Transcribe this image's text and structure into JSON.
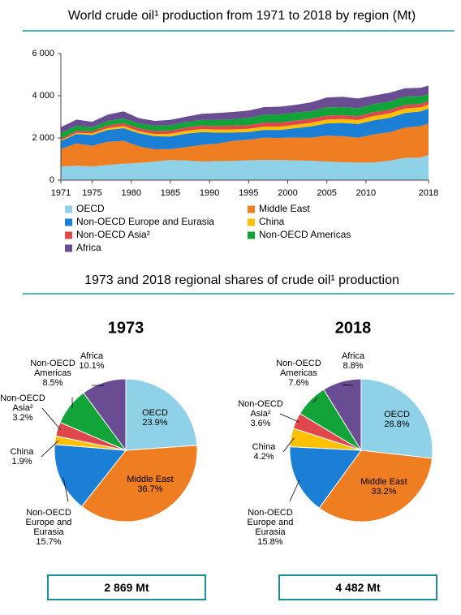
{
  "heading": "1973 and 2018 regional shares of crude oil¹ production",
  "chart_data": [
    {
      "type": "area",
      "stacked": true,
      "title": "World crude oil¹ production from 1971 to 2018 by region (Mt)",
      "x": [
        1971,
        1973,
        1975,
        1977,
        1979,
        1981,
        1983,
        1985,
        1987,
        1989,
        1991,
        1993,
        1995,
        1997,
        1999,
        2001,
        2003,
        2005,
        2007,
        2009,
        2011,
        2013,
        2015,
        2017,
        2018
      ],
      "xlim": [
        1971,
        2018
      ],
      "xticks": [
        1971,
        1975,
        1980,
        1985,
        1990,
        1995,
        2000,
        2005,
        2010,
        2018
      ],
      "ylim": [
        0,
        6000
      ],
      "yticks": [
        0,
        {
          "value": 2000,
          "label": "2 000"
        },
        {
          "value": 4000,
          "label": "4 000"
        },
        {
          "value": 6000,
          "label": "6 000"
        }
      ],
      "legend": "bottom",
      "series": [
        {
          "name": "OECD",
          "color": "#8fd1e6",
          "values": [
            650,
            686,
            650,
            720,
            780,
            820,
            880,
            950,
            930,
            880,
            900,
            910,
            940,
            960,
            950,
            940,
            920,
            880,
            850,
            830,
            840,
            920,
            1060,
            1060,
            1201
          ]
        },
        {
          "name": "Middle East",
          "color": "#ef7d22",
          "values": [
            820,
            1053,
            980,
            1100,
            1080,
            780,
            580,
            520,
            640,
            790,
            830,
            950,
            980,
            1050,
            1050,
            1080,
            1100,
            1230,
            1230,
            1180,
            1330,
            1350,
            1430,
            1500,
            1488
          ]
        },
        {
          "name": "Non-OECD Europe and Eurasia",
          "color": "#1c7fd6",
          "values": [
            380,
            450,
            510,
            560,
            600,
            620,
            620,
            600,
            630,
            610,
            520,
            400,
            360,
            370,
            380,
            440,
            530,
            580,
            630,
            650,
            670,
            680,
            690,
            700,
            708
          ]
        },
        {
          "name": "China",
          "color": "#ffc000",
          "values": [
            40,
            55,
            77,
            94,
            106,
            101,
            106,
            125,
            134,
            138,
            141,
            145,
            149,
            160,
            160,
            165,
            170,
            181,
            187,
            189,
            203,
            210,
            215,
            192,
            188
          ]
        },
        {
          "name": "Non-OECD Asia²",
          "color": "#e0474c",
          "values": [
            60,
            92,
            100,
            120,
            130,
            130,
            140,
            150,
            160,
            165,
            170,
            175,
            180,
            190,
            190,
            195,
            190,
            190,
            185,
            180,
            175,
            170,
            170,
            165,
            161
          ]
        },
        {
          "name": "Non-OECD Americas",
          "color": "#12a339",
          "values": [
            270,
            244,
            200,
            210,
            230,
            240,
            250,
            260,
            260,
            270,
            290,
            310,
            340,
            370,
            390,
            380,
            360,
            390,
            380,
            380,
            390,
            390,
            400,
            360,
            341
          ]
        },
        {
          "name": "Africa",
          "color": "#6a4c93",
          "values": [
            290,
            290,
            250,
            300,
            330,
            240,
            230,
            250,
            250,
            290,
            330,
            340,
            350,
            360,
            360,
            370,
            420,
            470,
            490,
            460,
            400,
            420,
            390,
            400,
            394
          ]
        }
      ]
    },
    {
      "type": "pie",
      "title": "1973",
      "categories": [
        "OECD",
        "Middle East",
        "Non-OECD Europe and Eurasia",
        "China",
        "Non-OECD Asia²",
        "Non-OECD Americas",
        "Africa"
      ],
      "values": [
        23.9,
        36.7,
        15.7,
        1.9,
        3.2,
        8.5,
        10.1
      ],
      "value_labels": [
        "23.9%",
        "36.7%",
        "15.7%",
        "1.9%",
        "3.2%",
        "8.5%",
        "10.1%"
      ],
      "colors": [
        "#8fd1e6",
        "#ef7d22",
        "#1c7fd6",
        "#ffc000",
        "#e0474c",
        "#12a339",
        "#6a4c93"
      ],
      "total_label": "2 869 Mt"
    },
    {
      "type": "pie",
      "title": "2018",
      "categories": [
        "OECD",
        "Middle East",
        "Non-OECD Europe and Eurasia",
        "China",
        "Non-OECD Asia²",
        "Non-OECD Americas",
        "Africa"
      ],
      "values": [
        26.8,
        33.2,
        15.8,
        4.2,
        3.6,
        7.6,
        8.8
      ],
      "value_labels": [
        "26.8%",
        "33.2%",
        "15.8%",
        "4.2%",
        "3.6%",
        "7.6%",
        "8.8%"
      ],
      "colors": [
        "#8fd1e6",
        "#ef7d22",
        "#1c7fd6",
        "#ffc000",
        "#e0474c",
        "#12a339",
        "#6a4c93"
      ],
      "total_label": "4 482 Mt"
    }
  ]
}
